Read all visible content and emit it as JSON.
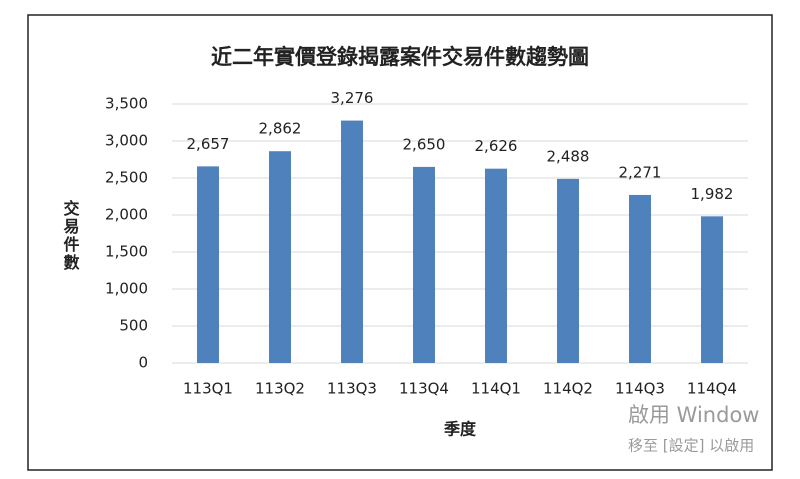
{
  "chart_data": {
    "type": "bar",
    "title": "近二年實價登錄揭露案件交易件數趨勢圖",
    "y_label": "交易件數",
    "x_label": "季度",
    "categories": [
      "113Q1",
      "113Q2",
      "113Q3",
      "113Q4",
      "114Q1",
      "114Q2",
      "114Q3",
      "114Q4"
    ],
    "values": [
      2657,
      2862,
      3276,
      2650,
      2626,
      2488,
      2271,
      1982
    ],
    "value_labels": [
      "2,657",
      "2,862",
      "3,276",
      "2,650",
      "2,626",
      "2,488",
      "2,271",
      "1,982"
    ],
    "color": "#4f81bd",
    "ylim": [
      0,
      3500
    ],
    "yticks": [
      0,
      500,
      {
        "value": 1000,
        "label": "1,000"
      },
      {
        "value": 1500,
        "label": "1,500"
      },
      {
        "value": 2000,
        "label": "2,000"
      },
      {
        "value": 2500,
        "label": "2,500"
      },
      {
        "value": 3000,
        "label": "3,000"
      },
      {
        "value": 3500,
        "label": "3,500"
      }
    ],
    "grid": true
  },
  "watermark": {
    "line1": "啟用 Window",
    "line2": "移至 [設定] 以啟用"
  }
}
